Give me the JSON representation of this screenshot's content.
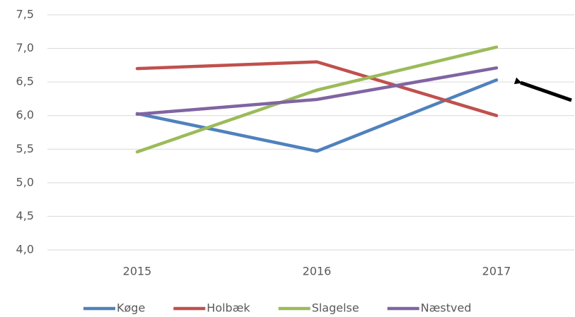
{
  "chart_data": {
    "type": "line",
    "categories": [
      "2015",
      "2016",
      "2017"
    ],
    "series": [
      {
        "name": "Køge",
        "color": "#4f81bd",
        "values": [
          6.03,
          5.47,
          6.53
        ]
      },
      {
        "name": "Holbæk",
        "color": "#c0504d",
        "values": [
          6.7,
          6.8,
          6.0
        ]
      },
      {
        "name": "Slagelse",
        "color": "#9bbb59",
        "values": [
          5.46,
          6.38,
          7.02
        ]
      },
      {
        "name": "Næstved",
        "color": "#8064a2",
        "values": [
          6.02,
          6.24,
          6.71
        ]
      }
    ],
    "ylim": [
      4.0,
      7.5
    ],
    "yticks": [
      {
        "value": 4.0,
        "label": "4,0"
      },
      {
        "value": 4.5,
        "label": "4,5"
      },
      {
        "value": 5.0,
        "label": "5,0"
      },
      {
        "value": 5.5,
        "label": "5,5"
      },
      {
        "value": 6.0,
        "label": "6,0"
      },
      {
        "value": 6.5,
        "label": "6,5"
      },
      {
        "value": 7.0,
        "label": "7,0"
      },
      {
        "value": 7.5,
        "label": "7,5"
      }
    ],
    "grid": true,
    "legend": "bottom"
  }
}
